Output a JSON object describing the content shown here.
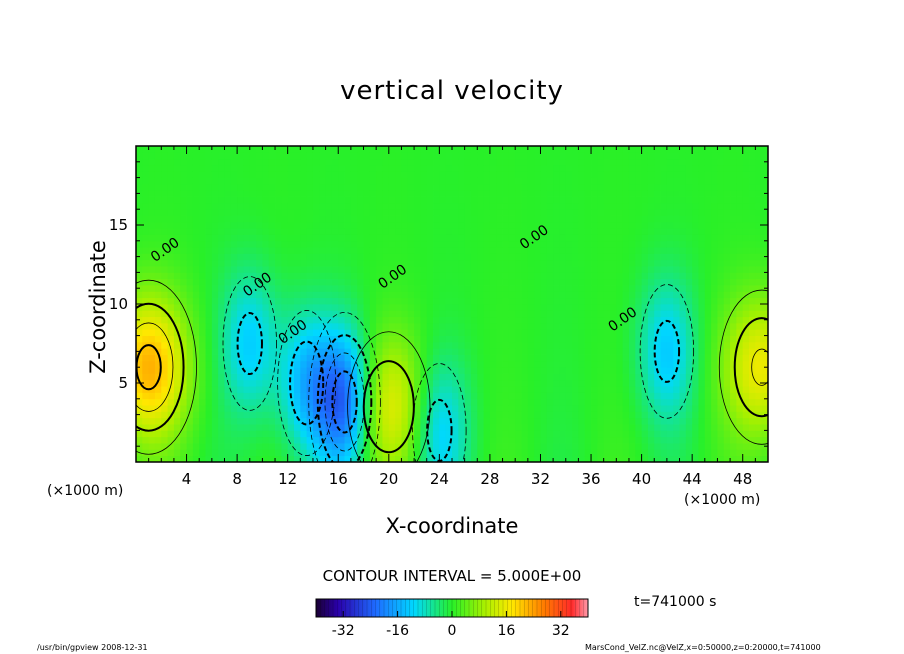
{
  "chart_data": {
    "type": "heatmap",
    "title": "vertical velocity",
    "xlabel": "X-coordinate",
    "ylabel": "Z-coordinate",
    "x_unit_label": "(×1000 m)",
    "x_unit_label_right": "(×1000 m)",
    "xlim": [
      0,
      50
    ],
    "ylim": [
      0,
      20
    ],
    "x_ticks": [
      4,
      8,
      12,
      16,
      20,
      24,
      28,
      32,
      36,
      40,
      44,
      48
    ],
    "y_ticks": [
      5,
      10,
      15
    ],
    "contour_interval_text": "CONTOUR INTERVAL = 5.000E+00",
    "contour_label": "0.00",
    "contour_label_positions_data": [
      [
        2.5,
        13.2
      ],
      [
        9.8,
        11.0
      ],
      [
        12.6,
        8.0
      ],
      [
        20.5,
        11.5
      ],
      [
        31.7,
        14.0
      ],
      [
        38.7,
        8.8
      ]
    ],
    "colorbar": {
      "range": [
        -40,
        40
      ],
      "ticks": [
        -32,
        -16,
        0,
        16,
        32
      ]
    },
    "time_label": "t=741000  s",
    "features": [
      {
        "name": "updraft",
        "x": 1.0,
        "z": 6.0,
        "value": 22
      },
      {
        "name": "updraft",
        "x": 20.0,
        "z": 3.5,
        "value": 15
      },
      {
        "name": "updraft",
        "x": 49.5,
        "z": 6.0,
        "value": 16
      },
      {
        "name": "downdraft",
        "x": 16.5,
        "z": 3.8,
        "value": -24
      },
      {
        "name": "downdraft",
        "x": 13.5,
        "z": 5.0,
        "value": -14
      },
      {
        "name": "downdraft",
        "x": 24.0,
        "z": 2.0,
        "value": -12
      },
      {
        "name": "downdraft",
        "x": 9.0,
        "z": 7.5,
        "value": -12
      },
      {
        "name": "downdraft",
        "x": 42.0,
        "z": 7.0,
        "value": -12
      }
    ]
  },
  "footer": {
    "left": "/usr/bin/gpview   2008-12-31",
    "right": "MarsCond_VelZ.nc@VelZ,x=0:50000,z=0:20000,t=741000"
  }
}
